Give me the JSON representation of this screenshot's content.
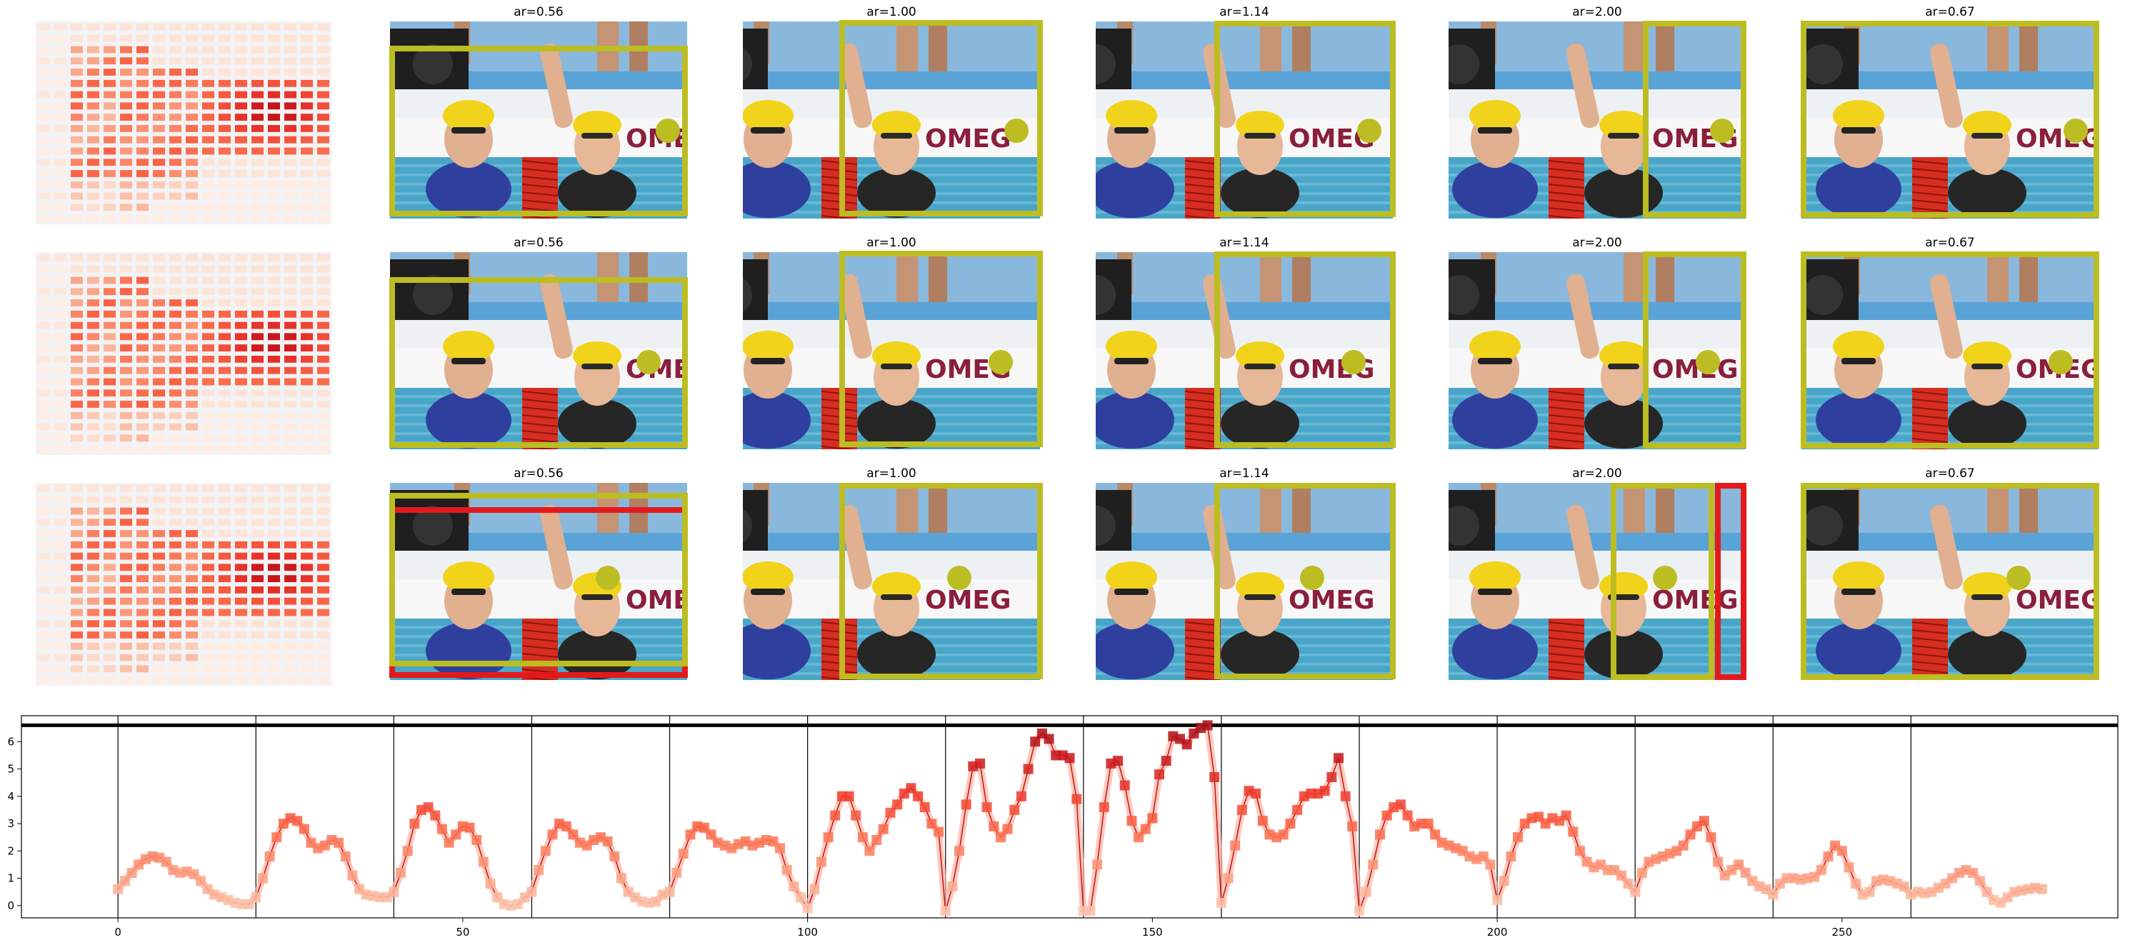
{
  "figure": {
    "panel_titles": [
      "ar=0.56",
      "ar=1.00",
      "ar=1.14",
      "ar=2.00",
      "ar=0.67"
    ],
    "box_colors": {
      "predicted": "#bcbd22",
      "ground_truth": "#e31a1c"
    },
    "heatmap_colormap": "Reds",
    "photo_description_icon": "swimmer-photo"
  },
  "chart_data": {
    "type": "line",
    "x": [
      0,
      1,
      2,
      3,
      4,
      5,
      6,
      7,
      8,
      9,
      10,
      11,
      12,
      13,
      14,
      15,
      16,
      17,
      18,
      19,
      20,
      21,
      22,
      23,
      24,
      25,
      26,
      27,
      28,
      29,
      30,
      31,
      32,
      33,
      34,
      35,
      36,
      37,
      38,
      39,
      40,
      41,
      42,
      43,
      44,
      45,
      46,
      47,
      48,
      49,
      50,
      51,
      52,
      53,
      54,
      55,
      56,
      57,
      58,
      59,
      60,
      61,
      62,
      63,
      64,
      65,
      66,
      67,
      68,
      69,
      70,
      71,
      72,
      73,
      74,
      75,
      76,
      77,
      78,
      79,
      80,
      81,
      82,
      83,
      84,
      85,
      86,
      87,
      88,
      89,
      90,
      91,
      92,
      93,
      94,
      95,
      96,
      97,
      98,
      99,
      100,
      101,
      102,
      103,
      104,
      105,
      106,
      107,
      108,
      109,
      110,
      111,
      112,
      113,
      114,
      115,
      116,
      117,
      118,
      119,
      120,
      121,
      122,
      123,
      124,
      125,
      126,
      127,
      128,
      129,
      130,
      131,
      132,
      133,
      134,
      135,
      136,
      137,
      138,
      139,
      140,
      141,
      142,
      143,
      144,
      145,
      146,
      147,
      148,
      149,
      150,
      151,
      152,
      153,
      154,
      155,
      156,
      157,
      158,
      159,
      160,
      161,
      162,
      163,
      164,
      165,
      166,
      167,
      168,
      169,
      170,
      171,
      172,
      173,
      174,
      175,
      176,
      177,
      178,
      179,
      180,
      181,
      182,
      183,
      184,
      185,
      186,
      187,
      188,
      189,
      190,
      191,
      192,
      193,
      194,
      195,
      196,
      197,
      198,
      199,
      200,
      201,
      202,
      203,
      204,
      205,
      206,
      207,
      208,
      209,
      210,
      211,
      212,
      213,
      214,
      215,
      216,
      217,
      218,
      219,
      220,
      221,
      222,
      223,
      224,
      225,
      226,
      227,
      228,
      229,
      230,
      231,
      232,
      233,
      234,
      235,
      236,
      237,
      238,
      239,
      240,
      241,
      242,
      243,
      244,
      245,
      246,
      247,
      248,
      249,
      250,
      251,
      252,
      253,
      254,
      255,
      256,
      257,
      258,
      259,
      260,
      261,
      262,
      263,
      264,
      265,
      266,
      267,
      268,
      269,
      270,
      271,
      272,
      273,
      274,
      275,
      276,
      277,
      278,
      279
    ],
    "y": [
      0.6,
      0.9,
      1.2,
      1.5,
      1.7,
      1.8,
      1.75,
      1.6,
      1.3,
      1.2,
      1.25,
      1.15,
      0.9,
      0.6,
      0.4,
      0.3,
      0.2,
      0.1,
      0.05,
      0.05,
      0.3,
      1.0,
      1.8,
      2.5,
      3.0,
      3.2,
      3.1,
      2.8,
      2.3,
      2.1,
      2.2,
      2.4,
      2.3,
      1.8,
      1.1,
      0.6,
      0.4,
      0.35,
      0.3,
      0.3,
      0.5,
      1.2,
      2.0,
      3.0,
      3.5,
      3.6,
      3.3,
      2.8,
      2.3,
      2.6,
      2.9,
      2.85,
      2.4,
      1.6,
      0.8,
      0.3,
      0.05,
      0.0,
      0.05,
      0.3,
      0.5,
      1.3,
      2.0,
      2.6,
      3.0,
      2.9,
      2.6,
      2.3,
      2.2,
      2.4,
      2.5,
      2.35,
      1.8,
      1.0,
      0.5,
      0.3,
      0.15,
      0.1,
      0.15,
      0.4,
      0.5,
      1.2,
      1.9,
      2.6,
      2.9,
      2.85,
      2.6,
      2.3,
      2.2,
      2.1,
      2.25,
      2.35,
      2.2,
      2.3,
      2.4,
      2.35,
      2.1,
      1.3,
      0.7,
      0.3,
      -0.1,
      0.6,
      1.6,
      2.5,
      3.3,
      4.0,
      4.0,
      3.3,
      2.5,
      2.0,
      2.4,
      2.8,
      3.4,
      3.7,
      4.1,
      4.3,
      4.0,
      3.6,
      3.0,
      2.7,
      -0.2,
      0.7,
      2.0,
      3.7,
      5.1,
      5.2,
      3.6,
      2.9,
      2.5,
      2.8,
      3.5,
      4.0,
      5.0,
      6.0,
      6.3,
      6.1,
      5.5,
      5.5,
      5.4,
      3.9,
      -0.2,
      -0.2,
      1.5,
      3.6,
      5.2,
      5.3,
      4.4,
      3.1,
      2.5,
      2.8,
      3.2,
      4.8,
      5.3,
      6.2,
      6.1,
      5.9,
      6.3,
      6.5,
      6.6,
      4.7,
      0.1,
      1.0,
      2.2,
      3.5,
      4.2,
      4.1,
      3.1,
      2.6,
      2.5,
      2.6,
      3.0,
      3.5,
      4.0,
      4.1,
      4.1,
      4.2,
      4.7,
      5.4,
      4.0,
      2.9,
      -0.2,
      0.5,
      1.5,
      2.6,
      3.3,
      3.6,
      3.7,
      3.3,
      2.9,
      3.0,
      3.0,
      2.6,
      2.3,
      2.2,
      2.1,
      2.0,
      1.8,
      1.7,
      1.8,
      1.5,
      0.2,
      0.9,
      1.8,
      2.5,
      3.0,
      3.2,
      3.25,
      3.0,
      3.2,
      3.1,
      3.3,
      2.7,
      2.0,
      1.6,
      1.4,
      1.5,
      1.3,
      1.3,
      1.1,
      0.8,
      0.5,
      1.2,
      1.6,
      1.7,
      1.8,
      1.9,
      2.0,
      2.2,
      2.6,
      2.9,
      3.1,
      2.5,
      1.6,
      1.1,
      1.3,
      1.5,
      1.2,
      0.9,
      0.7,
      0.6,
      0.4,
      0.8,
      1.0,
      1.0,
      0.95,
      1.0,
      1.05,
      1.3,
      1.8,
      2.2,
      2.0,
      1.4,
      0.8,
      0.4,
      0.5,
      0.9,
      0.95,
      0.9,
      0.8,
      0.7,
      0.4,
      0.5,
      0.45,
      0.5,
      0.65,
      0.8,
      1.0,
      1.2,
      1.3,
      1.2,
      0.9,
      0.5,
      0.2,
      0.1,
      0.3,
      0.5,
      0.55,
      0.6,
      0.65,
      0.6
    ],
    "segment_boundaries": [
      0,
      20,
      40,
      60,
      80,
      100,
      120,
      140,
      160,
      180,
      200,
      220,
      240,
      260
    ],
    "reference_line_y": 6.6,
    "xticks": [
      0,
      50,
      100,
      150,
      200,
      250
    ],
    "yticks": [
      0,
      1,
      2,
      3,
      4,
      5,
      6
    ],
    "xlim": [
      -14,
      290
    ],
    "ylim": [
      -0.45,
      6.95
    ],
    "grid": false,
    "line_color": "#c81b1b",
    "marker": "square"
  }
}
